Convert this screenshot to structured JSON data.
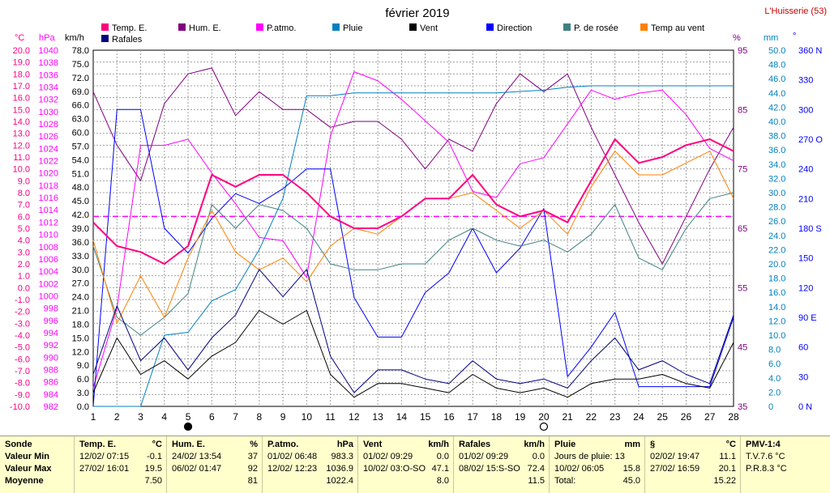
{
  "header": {
    "title": "février 2019",
    "station": "L'Huisserie (53)"
  },
  "axis_titles": {
    "temp": "°C",
    "pressure": "hPa",
    "wind": "km/h",
    "humidity": "%",
    "rain": "mm",
    "direction": "°"
  },
  "legend": [
    {
      "name": "Temp. E.",
      "color": "#ff0080"
    },
    {
      "name": "Hum. E.",
      "color": "#800080"
    },
    {
      "name": "P.atmo.",
      "color": "#ff00ff"
    },
    {
      "name": "Pluie",
      "color": "#0080c0"
    },
    {
      "name": "Vent",
      "color": "#000000"
    },
    {
      "name": "Direction",
      "color": "#0000ff"
    },
    {
      "name": "P. de rosée",
      "color": "#408080"
    },
    {
      "name": "Temp au vent",
      "color": "#ff8000"
    },
    {
      "name": "Rafales",
      "color": "#000080"
    }
  ],
  "chart_data": {
    "type": "line",
    "x": [
      1,
      2,
      3,
      4,
      5,
      6,
      7,
      8,
      9,
      10,
      11,
      12,
      13,
      14,
      15,
      16,
      17,
      18,
      19,
      20,
      21,
      22,
      23,
      24,
      25,
      26,
      27,
      28
    ],
    "x_ticks": [
      "1",
      "2",
      "3",
      "4",
      "5",
      "6",
      "7",
      "8",
      "9",
      "10",
      "11",
      "12",
      "13",
      "14",
      "15",
      "16",
      "17",
      "18",
      "19",
      "20",
      "21",
      "22",
      "23",
      "24",
      "25",
      "26",
      "27",
      "28"
    ],
    "reference_lines": [
      {
        "axis": "temp",
        "value": 6.0,
        "color": "#ff00ff",
        "style": "dashed"
      }
    ],
    "moon_markers": [
      {
        "x": 5,
        "phase": "new"
      },
      {
        "x": 20,
        "phase": "full"
      }
    ],
    "axes": {
      "temp": {
        "range": [
          -10,
          20
        ],
        "ticks": [
          "-10.0",
          "-9.0",
          "-8.0",
          "-7.0",
          "-6.0",
          "-5.0",
          "-4.0",
          "-3.0",
          "-2.0",
          "-1.0",
          "0.0",
          "1.0",
          "2.0",
          "3.0",
          "4.0",
          "5.0",
          "6.0",
          "7.0",
          "8.0",
          "9.0",
          "10.0",
          "11.0",
          "12.0",
          "13.0",
          "14.0",
          "15.0",
          "16.0",
          "17.0",
          "18.0",
          "19.0",
          "20.0"
        ]
      },
      "pressure": {
        "range": [
          982,
          1040
        ],
        "ticks": [
          "982",
          "984",
          "986",
          "988",
          "990",
          "992",
          "994",
          "996",
          "998",
          "1000",
          "1002",
          "1004",
          "1006",
          "1008",
          "1010",
          "1012",
          "1014",
          "1016",
          "1018",
          "1020",
          "1022",
          "1024",
          "1026",
          "1028",
          "1030",
          "1032",
          "1034",
          "1036",
          "1038",
          "1040"
        ]
      },
      "wind": {
        "range": [
          0,
          78
        ],
        "ticks": [
          "0.0",
          "3.0",
          "6.0",
          "9.0",
          "12.0",
          "15.0",
          "18.0",
          "21.0",
          "24.0",
          "27.0",
          "30.0",
          "33.0",
          "36.0",
          "39.0",
          "42.0",
          "45.0",
          "48.0",
          "51.0",
          "54.0",
          "57.0",
          "60.0",
          "63.0",
          "66.0",
          "69.0",
          "72.0",
          "75.0",
          "78.0"
        ]
      },
      "humidity": {
        "range": [
          35,
          95
        ],
        "ticks": [
          "35",
          "45",
          "55",
          "65",
          "75",
          "85",
          "95"
        ]
      },
      "rain": {
        "range": [
          0,
          50
        ],
        "ticks": [
          "0",
          "2.0",
          "4.0",
          "6.0",
          "8.0",
          "10.0",
          "12.0",
          "14.0",
          "16.0",
          "18.0",
          "20.0",
          "22.0",
          "24.0",
          "26.0",
          "28.0",
          "30.0",
          "32.0",
          "34.0",
          "36.0",
          "38.0",
          "40.0",
          "42.0",
          "44.0",
          "46.0",
          "48.0",
          "50.0"
        ]
      },
      "direction": {
        "range": [
          0,
          360
        ],
        "ticks": [
          "0 N",
          "30",
          "60",
          "90 E",
          "120",
          "150",
          "180 S",
          "210",
          "240",
          "270 O",
          "300",
          "330",
          "360 N"
        ]
      }
    },
    "series": [
      {
        "name": "Hum. E.",
        "axis": "humidity",
        "color": "#800080",
        "width": 1,
        "values": [
          88,
          79,
          73,
          86,
          91,
          92,
          84,
          88,
          85,
          85,
          82,
          83,
          83,
          80,
          75,
          80,
          78,
          86,
          91,
          88,
          91,
          82,
          74,
          66,
          59,
          67,
          75,
          82
        ]
      },
      {
        "name": "P.atmo.",
        "axis": "pressure",
        "color": "#ff00ff",
        "width": 1,
        "values": [
          985,
          998,
          1024.5,
          1024.5,
          1025.5,
          1020,
          1015,
          1009.5,
          1009,
          1003,
          1026,
          1036.5,
          1035,
          1032,
          1028.5,
          1025,
          1017,
          1016,
          1021.5,
          1022.5,
          1028,
          1033.5,
          1032,
          1033,
          1033.5,
          1029.5,
          1024,
          1022
        ]
      },
      {
        "name": "Pluie",
        "axis": "rain",
        "color": "#0080c0",
        "width": 1,
        "values": [
          0,
          0,
          0,
          10,
          10.4,
          14.8,
          16.4,
          22,
          29.2,
          43.6,
          43.6,
          44,
          44,
          44,
          44,
          44,
          44,
          44,
          44.2,
          44.4,
          44.8,
          45,
          45,
          45,
          45,
          45,
          45,
          45
        ]
      },
      {
        "name": "Direction",
        "axis": "direction",
        "color": "#0000ff",
        "width": 1,
        "values": [
          0,
          300,
          300,
          180,
          155,
          190,
          215,
          205,
          220,
          240,
          240,
          110,
          70,
          70,
          115,
          135,
          180,
          135,
          160,
          200,
          30,
          60,
          95,
          20,
          20,
          20,
          20,
          90
        ]
      },
      {
        "name": "P. de rosée",
        "axis": "temp",
        "color": "#408080",
        "width": 1,
        "values": [
          3.5,
          -2.5,
          -4.0,
          -2.5,
          -0.5,
          7.0,
          5.0,
          7.0,
          6.5,
          5.0,
          2.0,
          1.5,
          1.5,
          2.0,
          2.0,
          4.0,
          5.0,
          4.0,
          3.5,
          4.0,
          3.0,
          4.5,
          7.0,
          2.5,
          1.5,
          5.0,
          7.5,
          8.0
        ]
      },
      {
        "name": "Temp au vent",
        "axis": "temp",
        "color": "#ff8000",
        "width": 1,
        "values": [
          4.0,
          -3.0,
          1.0,
          -2.5,
          2.5,
          6.5,
          3.0,
          1.5,
          2.5,
          0.5,
          3.5,
          5.0,
          4.5,
          6.0,
          7.5,
          7.5,
          8.0,
          6.5,
          5.0,
          6.5,
          4.5,
          8.5,
          11.5,
          9.5,
          9.5,
          10.5,
          11.5,
          7.5
        ]
      },
      {
        "name": "Vent",
        "axis": "wind",
        "color": "#000000",
        "width": 1,
        "values": [
          3,
          15,
          7,
          10,
          6,
          11,
          14,
          21,
          18,
          21,
          7,
          2,
          5,
          5,
          4,
          3,
          7,
          4,
          3,
          4,
          2,
          5,
          6,
          6,
          7,
          5,
          4,
          14
        ]
      },
      {
        "name": "Rafales",
        "axis": "wind",
        "color": "#000080",
        "width": 1,
        "values": [
          7,
          22,
          10,
          15,
          8,
          15,
          20,
          30,
          24,
          30,
          11,
          3,
          8,
          8,
          6,
          5,
          10,
          6,
          5,
          6,
          4,
          10,
          15,
          8,
          10,
          7,
          5,
          20
        ]
      },
      {
        "name": "Temp. E.",
        "axis": "temp",
        "color": "#ff0080",
        "width": 2,
        "values": [
          5.5,
          3.5,
          3.0,
          2.0,
          3.5,
          9.5,
          8.5,
          9.5,
          9.5,
          8.0,
          6.0,
          5.0,
          5.0,
          6.0,
          7.5,
          7.5,
          9.5,
          7.0,
          6.0,
          6.5,
          5.5,
          9.0,
          12.5,
          10.5,
          11.0,
          12.0,
          12.5,
          11.5
        ]
      }
    ]
  },
  "stats": [
    {
      "title": "Sonde",
      "unit": "",
      "rows": [
        "Valeur Min",
        "Valeur Max",
        "Moyenne"
      ]
    },
    {
      "title": "Temp. E.",
      "unit": "°C",
      "rows": [
        {
          "date": "12/02/ 07:15",
          "value": "-0.1"
        },
        {
          "date": "27/02/ 16:01",
          "value": "19.5"
        },
        {
          "date": "",
          "value": "7.50"
        }
      ]
    },
    {
      "title": "Hum. E.",
      "unit": "%",
      "rows": [
        {
          "date": "24/02/ 13:54",
          "value": "37"
        },
        {
          "date": "06/02/ 01:47",
          "value": "92"
        },
        {
          "date": "",
          "value": "81"
        }
      ]
    },
    {
      "title": "P.atmo.",
      "unit": "hPa",
      "rows": [
        {
          "date": "01/02/ 06:48",
          "value": "983.3"
        },
        {
          "date": "12/02/ 12:23",
          "value": "1036.9"
        },
        {
          "date": "",
          "value": "1022.4"
        }
      ]
    },
    {
      "title": "Vent",
      "unit": "km/h",
      "rows": [
        {
          "date": "01/02/ 09:29",
          "value": "0.0"
        },
        {
          "date": "10/02/ 03:O-SO",
          "value": "47.1"
        },
        {
          "date": "",
          "value": "8.0"
        }
      ]
    },
    {
      "title": "Rafales",
      "unit": "km/h",
      "rows": [
        {
          "date": "01/02/ 09:29",
          "value": "0.0"
        },
        {
          "date": "08/02/ 15:S-SO",
          "value": "72.4"
        },
        {
          "date": "",
          "value": "11.5"
        }
      ]
    },
    {
      "title": "Pluie",
      "unit": "mm",
      "rows": [
        {
          "date": "Jours de pluie: 13",
          "value": ""
        },
        {
          "date": "10/02/ 06:05",
          "value": "15.8"
        },
        {
          "date": "Total:",
          "value": "45.0"
        }
      ]
    },
    {
      "title": "§",
      "unit": "°C",
      "rows": [
        {
          "date": "02/02/ 19:47",
          "value": "11.1"
        },
        {
          "date": "27/02/ 16:59",
          "value": "20.1"
        },
        {
          "date": "",
          "value": "15.22"
        }
      ]
    },
    {
      "title": "PMV-1:4",
      "unit": "",
      "rows": [
        "T.V.7.6 °C",
        "P.R.8.3 °C",
        ""
      ]
    }
  ]
}
